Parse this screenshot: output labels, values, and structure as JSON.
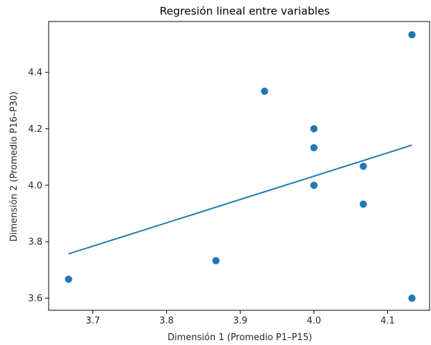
{
  "chart_data": {
    "type": "scatter",
    "title": "Regresión lineal entre variables",
    "xlabel": "Dimensión 1 (Promedio P1–P15)",
    "ylabel": "Dimensión 2 (Promedio P16–P30)",
    "xlim": [
      3.64,
      4.157
    ],
    "ylim": [
      3.557,
      4.58
    ],
    "xticks": [
      "3.7",
      "3.8",
      "3.9",
      "4.0",
      "4.1"
    ],
    "xtick_values": [
      3.7,
      3.8,
      3.9,
      4.0,
      4.1
    ],
    "yticks": [
      "3.6",
      "3.8",
      "4.0",
      "4.2",
      "4.4"
    ],
    "ytick_values": [
      3.6,
      3.8,
      4.0,
      4.2,
      4.4
    ],
    "grid": false,
    "points": {
      "x": [
        3.667,
        3.867,
        3.933,
        4.0,
        4.0,
        4.0,
        4.067,
        4.067,
        4.133,
        4.133
      ],
      "y": [
        3.667,
        3.733,
        4.333,
        4.2,
        4.133,
        4.0,
        4.067,
        3.933,
        4.533,
        3.6
      ]
    },
    "regression_line": {
      "x": [
        3.667,
        4.133
      ],
      "y": [
        3.757,
        4.142
      ]
    },
    "colors": {
      "points": "#1f77b4",
      "line": "#1f77b4",
      "axes": "#000000",
      "text": "#262626"
    }
  }
}
